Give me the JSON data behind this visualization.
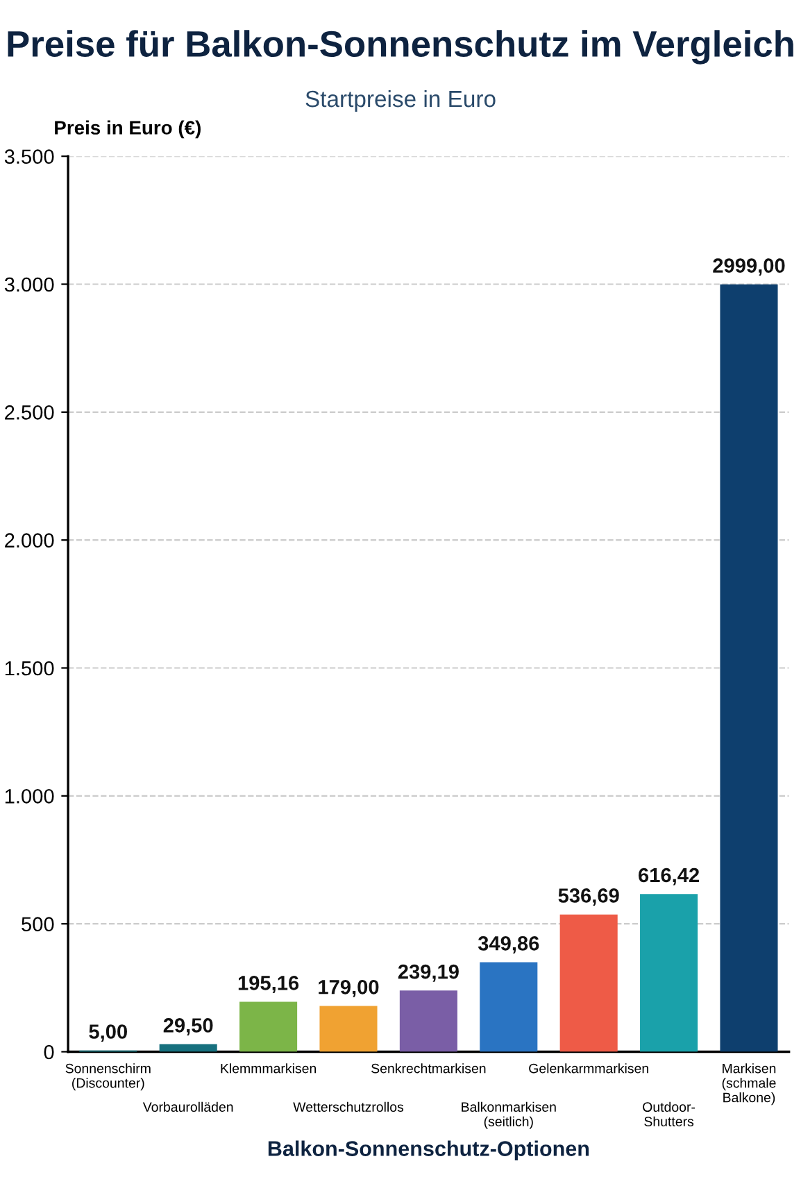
{
  "chart_data": {
    "type": "bar",
    "title": "Preise für Balkon-Sonnenschutz im Vergleich",
    "subtitle": "Startpreise in Euro",
    "ylabel": "Preis in Euro (€)",
    "xlabel": "Balkon-Sonnenschutz-Optionen",
    "categories": [
      "Sonnenschirm\n(Discounter)",
      "Vorbaurolläden",
      "Klemmmarkisen",
      "Wetterschutzrollos",
      "Senkrechtmarkisen",
      "Balkonmarkisen\n(seitlich)",
      "Gelenkarmmarkisen",
      "Outdoor-\nShutters",
      "Markisen\n(schmale\nBalkone)"
    ],
    "values": [
      5.0,
      29.5,
      195.16,
      179.0,
      239.19,
      349.86,
      536.69,
      616.42,
      2999.0
    ],
    "value_labels": [
      "5,00",
      "29,50",
      "195,16",
      "179,00",
      "239,19",
      "349,86",
      "536,69",
      "616,42",
      "2999,00"
    ],
    "colors": [
      "#1a8793",
      "#17707e",
      "#7cb548",
      "#f0a232",
      "#7a5ea6",
      "#2a74c2",
      "#ee5b47",
      "#1aa1aa",
      "#0e3f6e"
    ],
    "ylim": [
      0,
      3500
    ],
    "yticks": [
      {
        "value": 0,
        "label": "0"
      },
      {
        "value": 500,
        "label": "500"
      },
      {
        "value": 1000,
        "label": "1.000"
      },
      {
        "value": 1500,
        "label": "1.500"
      },
      {
        "value": 2000,
        "label": "2.000"
      },
      {
        "value": 2500,
        "label": "2.500"
      },
      {
        "value": 3000,
        "label": "3.000"
      },
      {
        "value": 3500,
        "label": "3.500"
      }
    ],
    "grid": "y"
  }
}
